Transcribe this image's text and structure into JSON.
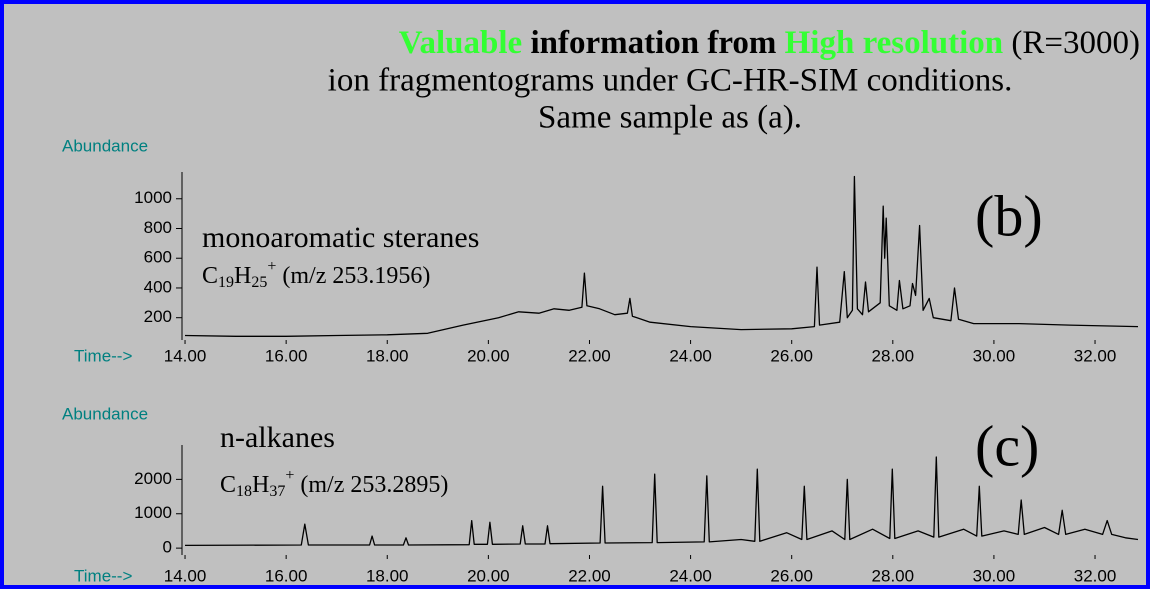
{
  "title": [
    "Valuable",
    " information from ",
    "High resolution",
    " (R=3000)"
  ],
  "subtitle": [
    "ion fragmentograms under GC-HR-SIM conditions.",
    "Same sample as (a)."
  ],
  "chart_data": [
    {
      "type": "line",
      "y_label": "Abundance",
      "x_label": "Time-->",
      "label": "(b)",
      "compound": "monoaromatic steranes",
      "formula": [
        "C",
        "19",
        "H",
        "25",
        "+",
        " (m/z 253.1956)"
      ],
      "color": "#000000",
      "xlim": [
        13.94,
        32.85
      ],
      "ylim": [
        50,
        1180
      ],
      "xticks": [
        {
          "value": 14,
          "label": "14.00"
        },
        {
          "value": 16,
          "label": "16.00"
        },
        {
          "value": 18,
          "label": "18.00"
        },
        {
          "value": 20,
          "label": "20.00"
        },
        {
          "value": 22,
          "label": "22.00"
        },
        {
          "value": 24,
          "label": "24.00"
        },
        {
          "value": 26,
          "label": "26.00"
        },
        {
          "value": 28,
          "label": "28.00"
        },
        {
          "value": 30,
          "label": "30.00"
        },
        {
          "value": 32,
          "label": "32.00"
        }
      ],
      "yticks": [
        200,
        400,
        600,
        800,
        1000
      ],
      "x": [
        14,
        15,
        16,
        17,
        18,
        18.8,
        19.5,
        20.2,
        20.6,
        21.0,
        21.3,
        21.6,
        21.85,
        21.9,
        21.95,
        22.2,
        22.5,
        22.75,
        22.8,
        22.85,
        23.2,
        24.0,
        25.0,
        26.0,
        26.45,
        26.5,
        26.55,
        26.95,
        27.04,
        27.1,
        27.2,
        27.24,
        27.3,
        27.4,
        27.46,
        27.52,
        27.75,
        27.81,
        27.84,
        27.87,
        27.93,
        28.08,
        28.13,
        28.2,
        28.34,
        28.39,
        28.45,
        28.53,
        28.6,
        28.72,
        28.8,
        29.15,
        29.22,
        29.3,
        29.6,
        30.5,
        31.5,
        32.85
      ],
      "values": [
        80,
        75,
        75,
        80,
        85,
        95,
        150,
        200,
        240,
        230,
        260,
        250,
        270,
        500,
        280,
        260,
        220,
        230,
        330,
        210,
        170,
        140,
        120,
        125,
        140,
        540,
        150,
        170,
        510,
        200,
        250,
        1150,
        260,
        220,
        440,
        240,
        300,
        950,
        600,
        870,
        280,
        250,
        450,
        260,
        280,
        430,
        350,
        820,
        250,
        330,
        200,
        180,
        400,
        190,
        160,
        160,
        150,
        140
      ]
    },
    {
      "type": "line",
      "y_label": "Abundance",
      "x_label": "Time-->",
      "label": "(c)",
      "compound": "n-alkanes",
      "formula": [
        "C",
        "18",
        "H",
        "37",
        "+",
        " (m/z 253.2895)"
      ],
      "color": "#000000",
      "xlim": [
        13.94,
        32.85
      ],
      "ylim": [
        -200,
        3000
      ],
      "xticks": [
        {
          "value": 14,
          "label": "14.00"
        },
        {
          "value": 16,
          "label": "16.00"
        },
        {
          "value": 18,
          "label": "18.00"
        },
        {
          "value": 20,
          "label": "20.00"
        },
        {
          "value": 22,
          "label": "22.00"
        },
        {
          "value": 24,
          "label": "24.00"
        },
        {
          "value": 26,
          "label": "26.00"
        },
        {
          "value": 28,
          "label": "28.00"
        },
        {
          "value": 30,
          "label": "30.00"
        },
        {
          "value": 32,
          "label": "32.00"
        }
      ],
      "yticks": [
        0,
        1000,
        2000
      ],
      "x": [
        14,
        16.3,
        16.37,
        16.44,
        17.65,
        17.7,
        17.75,
        18.32,
        18.37,
        18.42,
        19.62,
        19.67,
        19.72,
        19.98,
        20.03,
        20.08,
        20.63,
        20.68,
        20.73,
        21.12,
        21.17,
        21.22,
        22.21,
        22.26,
        22.31,
        23.24,
        23.29,
        23.34,
        24.27,
        24.32,
        24.37,
        25.0,
        25.27,
        25.32,
        25.37,
        25.9,
        26.2,
        26.25,
        26.3,
        26.8,
        27.05,
        27.1,
        27.15,
        27.6,
        27.94,
        27.99,
        28.04,
        28.5,
        28.81,
        28.86,
        28.91,
        29.4,
        29.66,
        29.71,
        29.76,
        30.2,
        30.48,
        30.54,
        30.6,
        31.0,
        31.28,
        31.35,
        31.42,
        31.8,
        32.15,
        32.24,
        32.33,
        32.6,
        32.85
      ],
      "values": [
        80,
        90,
        700,
        90,
        90,
        350,
        90,
        90,
        300,
        90,
        100,
        800,
        110,
        110,
        750,
        110,
        120,
        650,
        120,
        120,
        650,
        130,
        150,
        1800,
        150,
        160,
        2150,
        160,
        180,
        2100,
        180,
        250,
        200,
        2300,
        200,
        450,
        250,
        1800,
        250,
        500,
        250,
        2000,
        250,
        550,
        280,
        2300,
        280,
        500,
        320,
        2650,
        320,
        550,
        350,
        1800,
        350,
        500,
        400,
        1400,
        400,
        600,
        400,
        1100,
        400,
        550,
        400,
        800,
        400,
        300,
        250
      ]
    }
  ]
}
